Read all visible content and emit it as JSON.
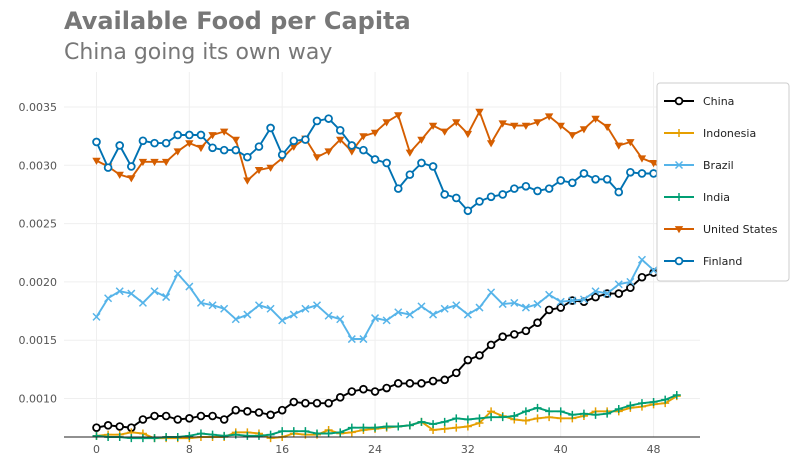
{
  "chart_data": {
    "type": "line",
    "title": "Available Food per Capita",
    "subtitle": "China going its own way",
    "xlabel": "",
    "ylabel": "",
    "xlim": [
      -2.8,
      52
    ],
    "ylim": [
      0.00067,
      0.0038
    ],
    "xticks": [
      0,
      8,
      16,
      24,
      32,
      40,
      48
    ],
    "yticks": [
      0.001,
      0.0015,
      0.002,
      0.0025,
      0.003,
      0.0035
    ],
    "grid": true,
    "legend": "right",
    "x_start": 0,
    "series": [
      {
        "name": "China",
        "color": "#000000",
        "marker": "circle",
        "values": [
          0.00075,
          0.00077,
          0.00076,
          0.00075,
          0.00082,
          0.00085,
          0.00085,
          0.00082,
          0.00083,
          0.00085,
          0.00085,
          0.00082,
          0.0009,
          0.00089,
          0.00088,
          0.00086,
          0.0009,
          0.00097,
          0.00096,
          0.00096,
          0.00096,
          0.00101,
          0.00106,
          0.00108,
          0.00106,
          0.00109,
          0.00113,
          0.00113,
          0.00113,
          0.00115,
          0.00116,
          0.00122,
          0.00133,
          0.00137,
          0.00146,
          0.00153,
          0.00155,
          0.00158,
          0.00165,
          0.00176,
          0.00178,
          0.00184,
          0.00183,
          0.00187,
          0.0019,
          0.0019,
          0.00195,
          0.00204,
          0.00208,
          0.00216,
          0.00217
        ]
      },
      {
        "name": "Indonesia",
        "color": "#E69F00",
        "marker": "plus",
        "values": [
          0.00068,
          0.00069,
          0.00069,
          0.00071,
          0.0007,
          0.00066,
          0.00066,
          0.00066,
          0.00066,
          0.00067,
          0.00067,
          0.00067,
          0.00071,
          0.00071,
          0.0007,
          0.00066,
          0.00067,
          0.0007,
          0.00069,
          0.00069,
          0.00073,
          0.0007,
          0.00071,
          0.00073,
          0.00074,
          0.00075,
          0.00076,
          0.00077,
          0.0008,
          0.00073,
          0.00074,
          0.00075,
          0.00076,
          0.00079,
          0.00089,
          0.00085,
          0.00082,
          0.00081,
          0.00083,
          0.00084,
          0.00083,
          0.00083,
          0.00085,
          0.00089,
          0.00089,
          0.00089,
          0.00092,
          0.00093,
          0.00095,
          0.00096,
          0.00102
        ]
      },
      {
        "name": "Brazil",
        "color": "#56B4E9",
        "marker": "x",
        "values": [
          0.0017,
          0.00186,
          0.00192,
          0.0019,
          0.00182,
          0.00192,
          0.00187,
          0.00207,
          0.00196,
          0.00182,
          0.0018,
          0.00177,
          0.00168,
          0.00172,
          0.0018,
          0.00177,
          0.00167,
          0.00172,
          0.00177,
          0.0018,
          0.00171,
          0.00168,
          0.00151,
          0.00151,
          0.00169,
          0.00167,
          0.00174,
          0.00172,
          0.00179,
          0.00172,
          0.00177,
          0.0018,
          0.00172,
          0.00178,
          0.00191,
          0.00181,
          0.00182,
          0.00178,
          0.00181,
          0.00189,
          0.00183,
          0.00184,
          0.00185,
          0.00192,
          0.0019,
          0.00198,
          0.002,
          0.00219,
          0.0021,
          0.00218,
          0.0023
        ]
      },
      {
        "name": "India",
        "color": "#009E73",
        "marker": "plus",
        "values": [
          0.00068,
          0.00067,
          0.00067,
          0.00066,
          0.00066,
          0.00066,
          0.00067,
          0.00067,
          0.00068,
          0.0007,
          0.00069,
          0.00068,
          0.00069,
          0.00068,
          0.00068,
          0.00069,
          0.00072,
          0.00072,
          0.00072,
          0.0007,
          0.0007,
          0.00071,
          0.00075,
          0.00075,
          0.00075,
          0.00076,
          0.00076,
          0.00077,
          0.0008,
          0.00078,
          0.0008,
          0.00083,
          0.00082,
          0.00083,
          0.00084,
          0.00084,
          0.00085,
          0.00089,
          0.00092,
          0.00089,
          0.00089,
          0.00086,
          0.00087,
          0.00086,
          0.00087,
          0.00091,
          0.00094,
          0.00096,
          0.00097,
          0.00099,
          0.00103
        ]
      },
      {
        "name": "United States",
        "color": "#D55E00",
        "marker": "triangle-down",
        "values": [
          0.00304,
          0.00299,
          0.00292,
          0.00289,
          0.00303,
          0.00303,
          0.00303,
          0.00312,
          0.00319,
          0.00315,
          0.00326,
          0.00329,
          0.00322,
          0.00287,
          0.00296,
          0.00298,
          0.00306,
          0.00316,
          0.00323,
          0.00307,
          0.00312,
          0.00322,
          0.00312,
          0.00325,
          0.00328,
          0.00337,
          0.00343,
          0.00311,
          0.00322,
          0.00334,
          0.00329,
          0.00337,
          0.00327,
          0.00346,
          0.00319,
          0.00336,
          0.00334,
          0.00334,
          0.00337,
          0.00342,
          0.00334,
          0.00326,
          0.00331,
          0.0034,
          0.00333,
          0.00317,
          0.0032,
          0.00306,
          0.00302,
          0.00296,
          0.00299
        ]
      },
      {
        "name": "Finland",
        "color": "#0072B2",
        "marker": "circle",
        "values": [
          0.0032,
          0.00298,
          0.00317,
          0.00299,
          0.00321,
          0.00319,
          0.00319,
          0.00326,
          0.00326,
          0.00326,
          0.00315,
          0.00313,
          0.00313,
          0.00307,
          0.00316,
          0.00332,
          0.00309,
          0.00321,
          0.00322,
          0.00338,
          0.0034,
          0.0033,
          0.00317,
          0.00313,
          0.00305,
          0.00302,
          0.0028,
          0.00292,
          0.00302,
          0.00299,
          0.00275,
          0.00272,
          0.00261,
          0.00269,
          0.00273,
          0.00275,
          0.0028,
          0.00282,
          0.00278,
          0.0028,
          0.00287,
          0.00285,
          0.00293,
          0.00288,
          0.00288,
          0.00277,
          0.00294,
          0.00293,
          0.00293,
          0.00287,
          0.00286
        ]
      }
    ]
  }
}
